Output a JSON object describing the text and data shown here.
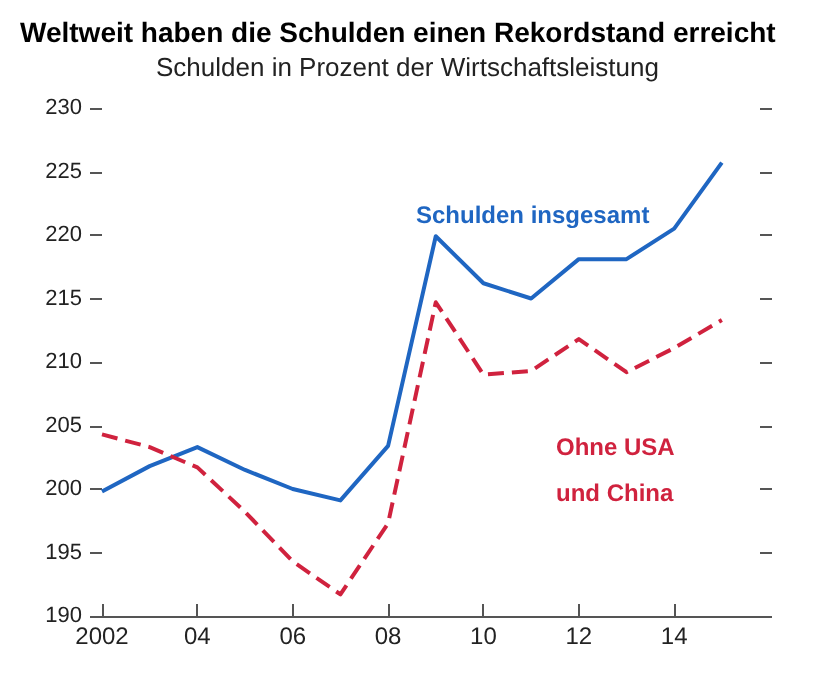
{
  "chart_data": {
    "type": "line",
    "title": "Weltweit haben die Schulden einen Rekordstand erreicht",
    "subtitle": "Schulden in Prozent der Wirtschaftsleistung",
    "x": [
      2002,
      2003,
      2004,
      2005,
      2006,
      2007,
      2008,
      2009,
      2010,
      2011,
      2012,
      2013,
      2014,
      2015
    ],
    "series": [
      {
        "name": "Schulden insgesamt",
        "color": "#1f66c2",
        "line_style": "solid",
        "values": [
          199.8,
          201.8,
          203.3,
          201.5,
          200.0,
          199.1,
          203.4,
          219.9,
          216.2,
          215.0,
          218.1,
          218.1,
          220.5,
          225.7
        ]
      },
      {
        "name": "Ohne USA und China",
        "color": "#d0223e",
        "line_style": "dashed",
        "values": [
          204.3,
          203.3,
          201.7,
          198.2,
          194.3,
          191.7,
          197.3,
          214.7,
          209.0,
          209.3,
          211.8,
          209.2,
          211.1,
          213.3
        ]
      }
    ],
    "xlim": [
      2002,
      2015.8
    ],
    "xticks": [
      {
        "value": 2002,
        "label": "2002"
      },
      {
        "value": 2004,
        "label": "04"
      },
      {
        "value": 2006,
        "label": "06"
      },
      {
        "value": 2008,
        "label": "08"
      },
      {
        "value": 2010,
        "label": "10"
      },
      {
        "value": 2012,
        "label": "12"
      },
      {
        "value": 2014,
        "label": "14"
      }
    ],
    "ylim": [
      190,
      230
    ],
    "yticks": [
      190,
      195,
      200,
      205,
      210,
      215,
      220,
      225,
      230
    ],
    "grid": false,
    "legend": false,
    "marker": "none"
  }
}
